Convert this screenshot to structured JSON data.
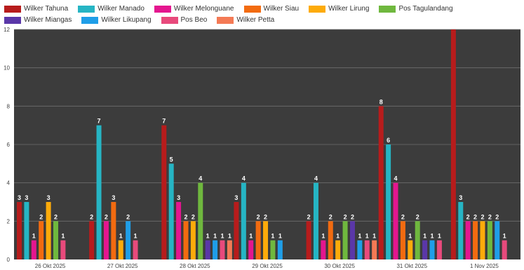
{
  "chart_data": {
    "type": "bar",
    "title": "",
    "xlabel": "",
    "ylabel": "",
    "ylim": [
      0,
      12
    ],
    "yticks": [
      "0",
      "2",
      "4",
      "6",
      "8",
      "10",
      "12"
    ],
    "grid": true,
    "legend_position": "top",
    "categories": [
      "26 Okt 2025",
      "27 Okt 2025",
      "28 Okt 2025",
      "29 Okt 2025",
      "30 Okt 2025",
      "31 Okt 2025",
      "1 Nov 2025"
    ],
    "series": [
      {
        "name": "Wilker Tahuna",
        "color": "#b71c1c",
        "values": [
          3,
          2,
          7,
          3,
          2,
          8,
          12
        ]
      },
      {
        "name": "Wilker Manado",
        "color": "#26b5c4",
        "values": [
          3,
          7,
          5,
          4,
          4,
          6,
          3
        ]
      },
      {
        "name": "Wilker Melonguane",
        "color": "#e4168f",
        "values": [
          1,
          2,
          3,
          1,
          1,
          4,
          2
        ]
      },
      {
        "name": "Wilker Siau",
        "color": "#f26b10",
        "values": [
          2,
          3,
          2,
          2,
          2,
          2,
          2
        ]
      },
      {
        "name": "Wilker Lirung",
        "color": "#fdab0a",
        "values": [
          3,
          1,
          2,
          2,
          1,
          1,
          2
        ]
      },
      {
        "name": "Pos Tagulandang",
        "color": "#6fb83e",
        "values": [
          2,
          null,
          4,
          1,
          2,
          2,
          2
        ]
      },
      {
        "name": "Wilker Miangas",
        "color": "#5a37a8",
        "values": [
          null,
          null,
          1,
          null,
          2,
          1,
          null
        ]
      },
      {
        "name": "Wilker Likupang",
        "color": "#1f9ee8",
        "values": [
          null,
          2,
          1,
          1,
          1,
          1,
          2
        ]
      },
      {
        "name": "Pos Beo",
        "color": "#e84a7c",
        "values": [
          1,
          1,
          1,
          null,
          1,
          1,
          1
        ]
      },
      {
        "name": "Wilker Petta",
        "color": "#f47a55",
        "values": [
          null,
          null,
          1,
          null,
          1,
          null,
          null
        ]
      }
    ]
  }
}
